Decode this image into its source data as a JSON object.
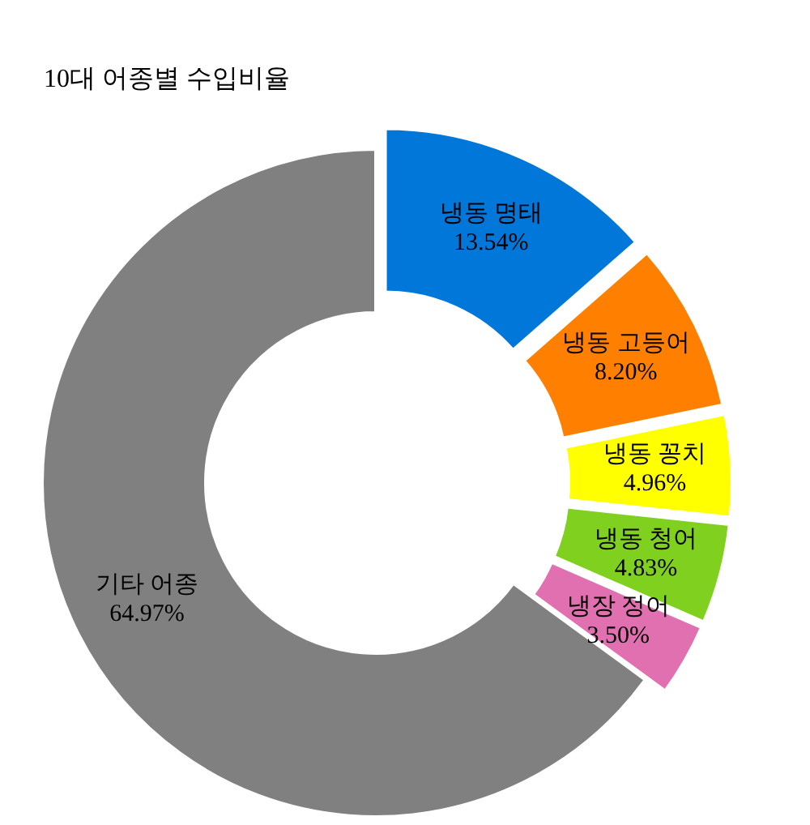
{
  "chart_data": {
    "type": "donut",
    "title": "10대 어종별 수입비율",
    "categories": [
      "냉동 명태",
      "냉동 고등어",
      "냉동 꽁치",
      "냉동 청어",
      "냉장 정어",
      "기타 어종"
    ],
    "values": [
      13.54,
      8.2,
      4.96,
      4.83,
      3.5,
      64.97
    ],
    "value_labels": [
      "13.54%",
      "8.20%",
      "4.96%",
      "4.83%",
      "3.50%",
      "64.97%"
    ],
    "colors": [
      "#0077d9",
      "#ff8000",
      "#ffff00",
      "#80d020",
      "#e070b0",
      "#808080"
    ],
    "legend": false
  }
}
